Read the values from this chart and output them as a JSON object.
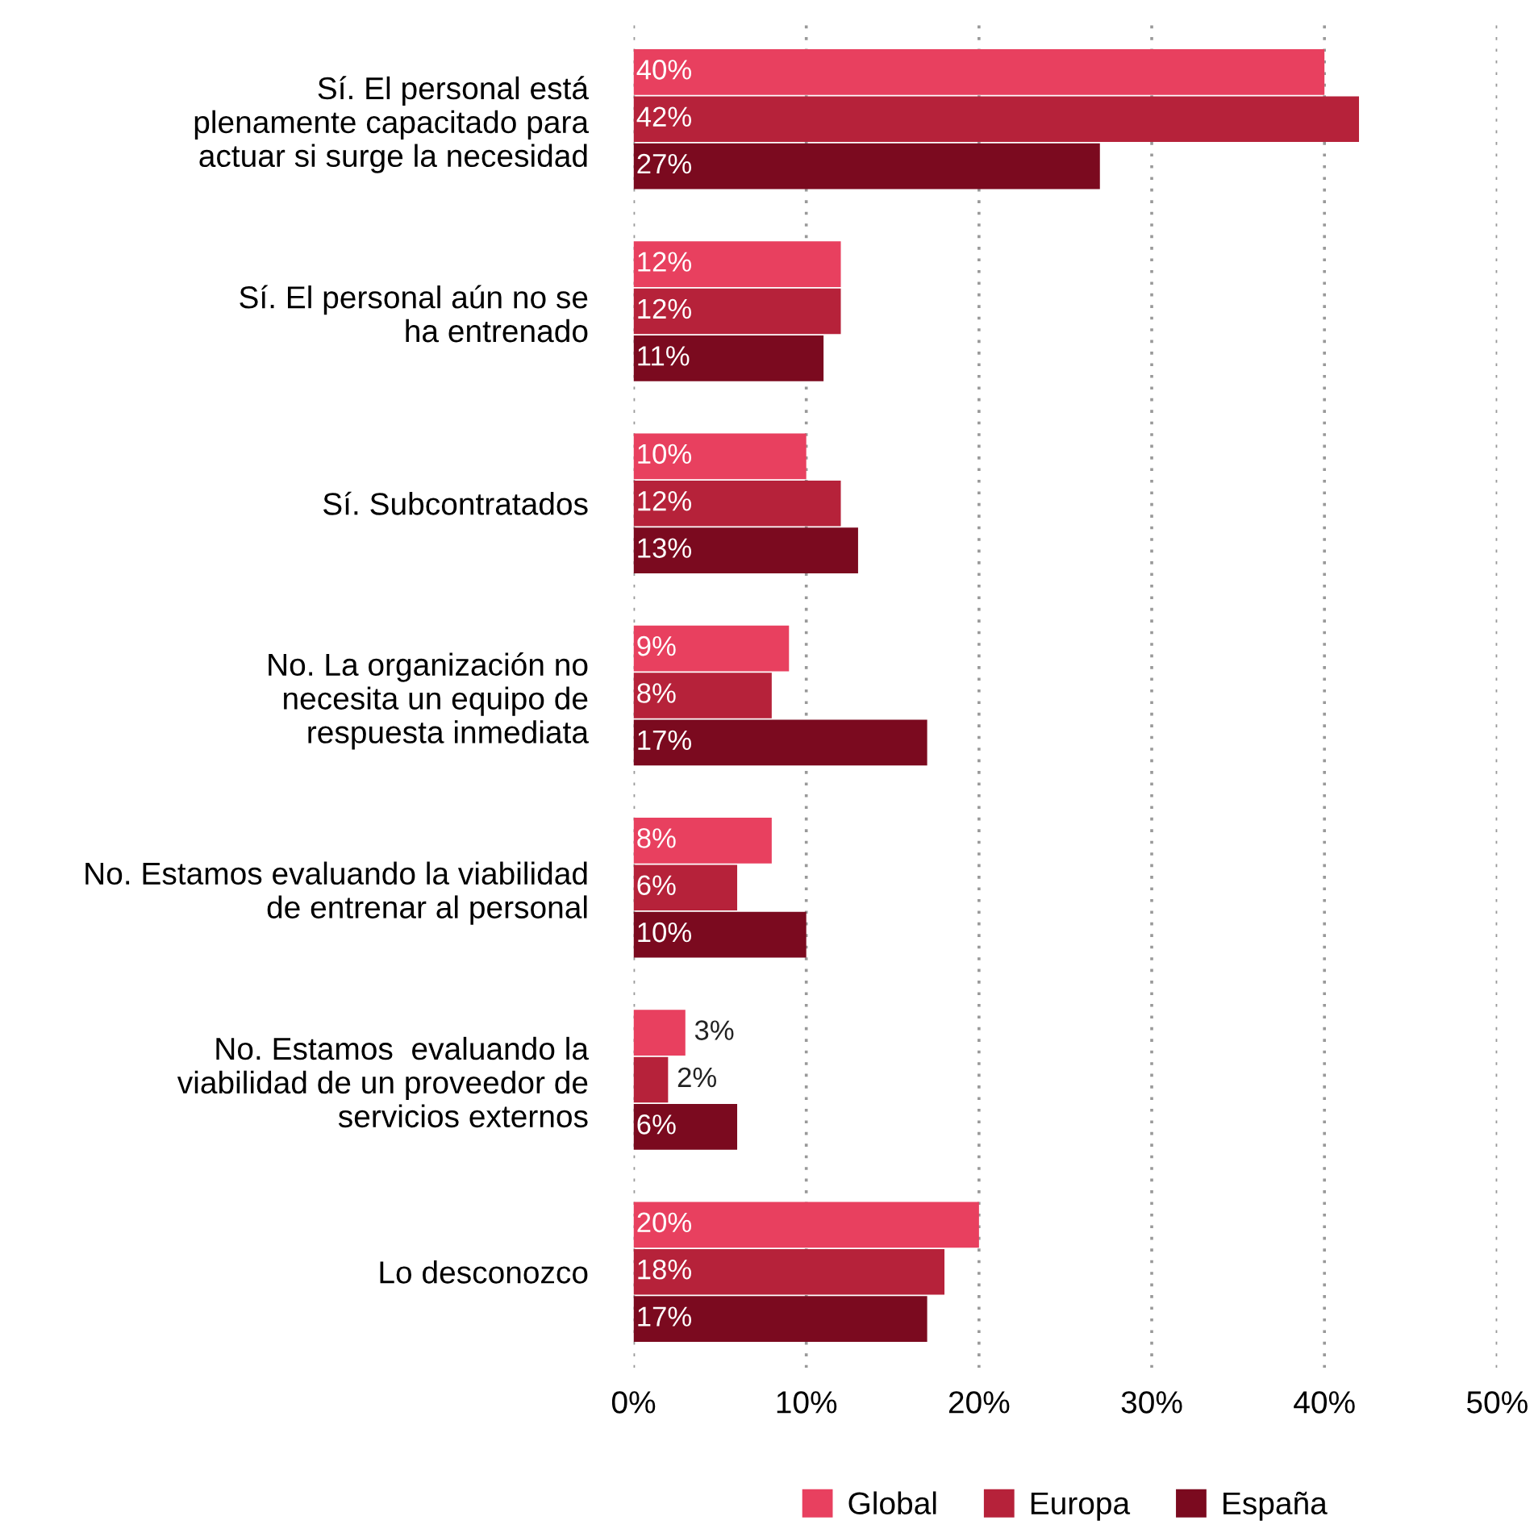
{
  "chart_data": {
    "type": "bar",
    "orientation": "horizontal",
    "categories": [
      "Sí. El personal está\nplenamente capacitado para\nactuar si surge la necesidad",
      "Sí. El personal aún no se\nha entrenado",
      "Sí. Subcontratados",
      "No. La organización no\nnecesita un equipo de\nrespuesta inmediata",
      "No. Estamos evaluando la viabilidad\nde entrenar al personal",
      "No. Estamos  evaluando la\nviabilidad de un proveedor de\nservicios externos",
      "Lo desconozco"
    ],
    "series": [
      {
        "name": "Global",
        "color": "#e8405f",
        "values": [
          40,
          12,
          10,
          9,
          8,
          3,
          20
        ],
        "value_labels": [
          "40%",
          "12%",
          "10%",
          "9%",
          "8%",
          "3%",
          "20%"
        ]
      },
      {
        "name": "Europa",
        "color": "#b6223a",
        "values": [
          42,
          12,
          12,
          8,
          6,
          2,
          18
        ],
        "value_labels": [
          "42%",
          "12%",
          "12%",
          "8%",
          "6%",
          "2%",
          "18%"
        ]
      },
      {
        "name": "España",
        "color": "#7b0a1f",
        "values": [
          27,
          11,
          13,
          17,
          10,
          6,
          17
        ],
        "value_labels": [
          "27%",
          "11%",
          "13%",
          "17%",
          "10%",
          "6%",
          "17%"
        ]
      }
    ],
    "xlim": [
      0,
      50
    ],
    "xticks": [
      {
        "value": 0,
        "label": "0%"
      },
      {
        "value": 10,
        "label": "10%"
      },
      {
        "value": 20,
        "label": "20%"
      },
      {
        "value": 30,
        "label": "30%"
      },
      {
        "value": 40,
        "label": "40%"
      },
      {
        "value": 50,
        "label": "50%"
      }
    ],
    "grid": "x",
    "legend": "bottom"
  }
}
